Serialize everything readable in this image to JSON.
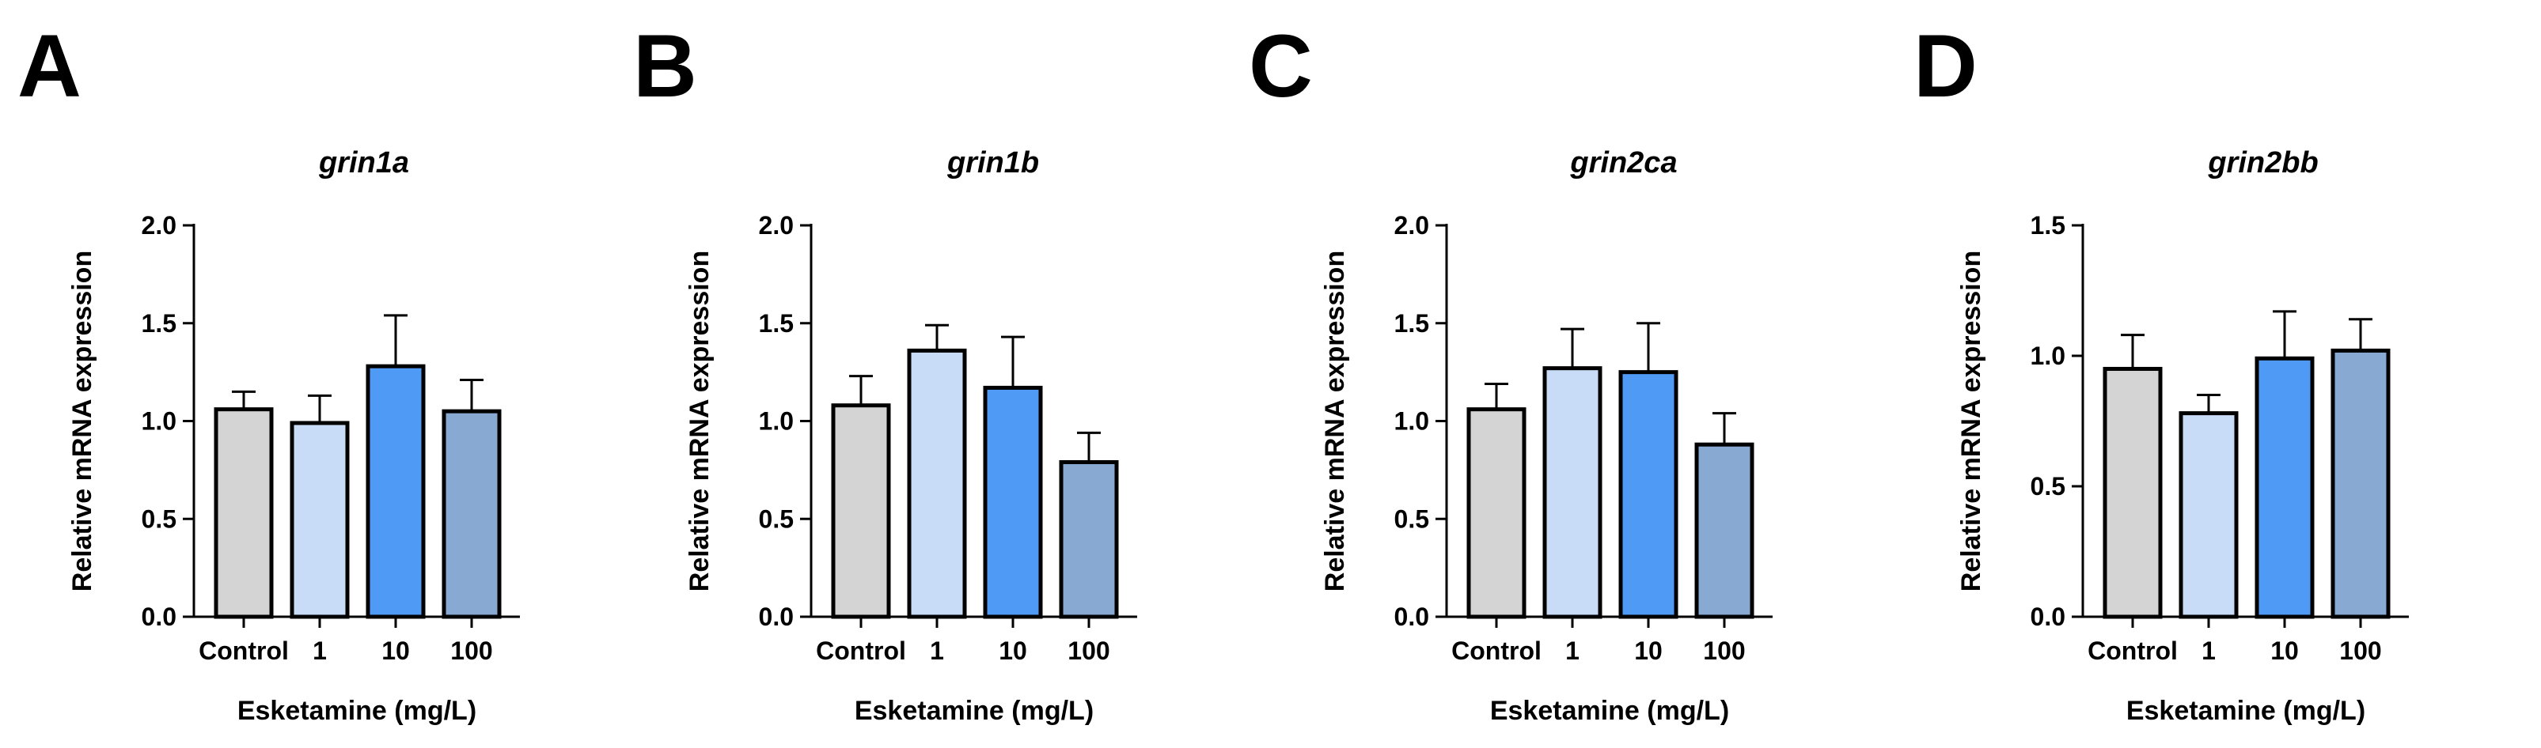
{
  "chart_data": [
    {
      "panel": "A",
      "type": "bar",
      "title": "grin1a",
      "xlabel": "Esketamine (mg/L)",
      "ylabel": "Relative mRNA expression",
      "categories": [
        "Control",
        "1",
        "10",
        "100"
      ],
      "values": [
        1.06,
        0.99,
        1.28,
        1.05
      ],
      "errors": [
        0.09,
        0.14,
        0.26,
        0.16
      ],
      "ylim": [
        0,
        2.0
      ],
      "yticks": [
        "0.0",
        "0.5",
        "1.0",
        "1.5",
        "2.0"
      ],
      "bar_colors": [
        "#d4d4d4",
        "#c9dcf7",
        "#4f9af5",
        "#88a9d1"
      ]
    },
    {
      "panel": "B",
      "type": "bar",
      "title": "grin1b",
      "xlabel": "Esketamine (mg/L)",
      "ylabel": "Relative mRNA expression",
      "categories": [
        "Control",
        "1",
        "10",
        "100"
      ],
      "values": [
        1.08,
        1.36,
        1.17,
        0.79
      ],
      "errors": [
        0.15,
        0.13,
        0.26,
        0.15
      ],
      "ylim": [
        0,
        2.0
      ],
      "yticks": [
        "0.0",
        "0.5",
        "1.0",
        "1.5",
        "2.0"
      ],
      "bar_colors": [
        "#d4d4d4",
        "#c9dcf7",
        "#4f9af5",
        "#88a9d1"
      ]
    },
    {
      "panel": "C",
      "type": "bar",
      "title": "grin2ca",
      "xlabel": "Esketamine (mg/L)",
      "ylabel": "Relative mRNA expression",
      "categories": [
        "Control",
        "1",
        "10",
        "100"
      ],
      "values": [
        1.06,
        1.27,
        1.25,
        0.88
      ],
      "errors": [
        0.13,
        0.2,
        0.25,
        0.16
      ],
      "ylim": [
        0,
        2.0
      ],
      "yticks": [
        "0.0",
        "0.5",
        "1.0",
        "1.5",
        "2.0"
      ],
      "bar_colors": [
        "#d4d4d4",
        "#c9dcf7",
        "#4f9af5",
        "#88a9d1"
      ]
    },
    {
      "panel": "D",
      "type": "bar",
      "title": "grin2bb",
      "xlabel": "Esketamine (mg/L)",
      "ylabel": "Relative mRNA expression",
      "categories": [
        "Control",
        "1",
        "10",
        "100"
      ],
      "values": [
        0.95,
        0.78,
        0.99,
        1.02
      ],
      "errors": [
        0.13,
        0.07,
        0.18,
        0.12
      ],
      "ylim": [
        0,
        1.5
      ],
      "yticks": [
        "0.0",
        "0.5",
        "1.0",
        "1.5"
      ],
      "bar_colors": [
        "#d4d4d4",
        "#c9dcf7",
        "#4f9af5",
        "#88a9d1"
      ]
    }
  ]
}
